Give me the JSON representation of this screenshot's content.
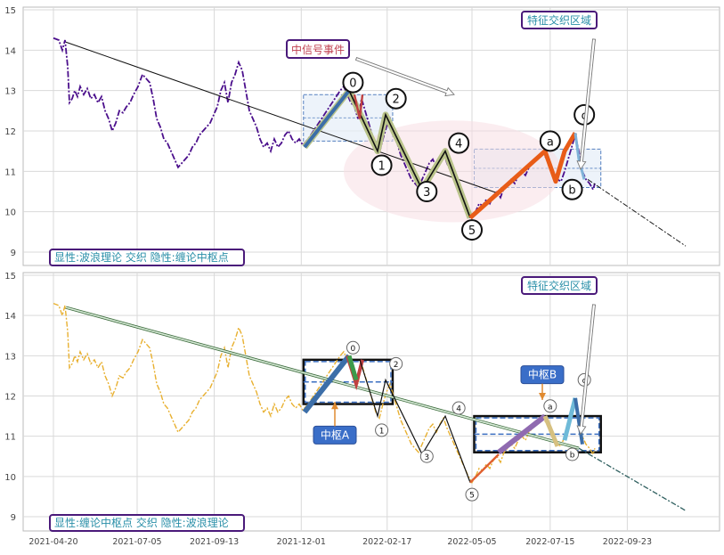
{
  "chart_data": [
    {
      "type": "line",
      "panel": "top",
      "ylim": [
        8.8,
        15.1
      ],
      "yticks": [
        9,
        10,
        11,
        12,
        13,
        14,
        15
      ],
      "grid": true,
      "legend_box": "显性:波浪理论 交织 隐性:缠论中枢点",
      "annotations": {
        "signal_event": "中信号事件",
        "feature_zone": "特征交织区域"
      },
      "wave_labels": [
        {
          "label": "0",
          "x": "2022-01-17",
          "y": 13.2
        },
        {
          "label": "2",
          "x": "2022-02-25",
          "y": 12.8
        },
        {
          "label": "1",
          "x": "2022-02-12",
          "y": 11.15
        },
        {
          "label": "3",
          "x": "2022-03-25",
          "y": 10.5
        },
        {
          "label": "4",
          "x": "2022-04-23",
          "y": 11.7
        },
        {
          "label": "5",
          "x": "2022-05-05",
          "y": 9.55
        },
        {
          "label": "a",
          "x": "2022-07-15",
          "y": 11.75
        },
        {
          "label": "b",
          "x": "2022-08-04",
          "y": 10.55
        },
        {
          "label": "c",
          "x": "2022-08-15",
          "y": 12.4
        }
      ],
      "zones": [
        {
          "x": [
            "2021-12-03",
            "2022-02-22"
          ],
          "y": [
            11.75,
            12.9
          ]
        },
        {
          "x": [
            "2022-05-07",
            "2022-08-30"
          ],
          "y": [
            10.6,
            11.55
          ]
        }
      ]
    },
    {
      "type": "line",
      "panel": "bottom",
      "ylim": [
        8.8,
        15.1
      ],
      "yticks": [
        9,
        10,
        11,
        12,
        13,
        14,
        15
      ],
      "grid": true,
      "legend_box": "显性:缠论中枢点 交织 隐性:波浪理论",
      "annotations": {
        "pivot_a": "中枢A",
        "pivot_b": "中枢B",
        "feature_zone": "特征交织区域"
      },
      "wave_labels": [
        {
          "label": "0",
          "x": "2022-01-17",
          "y": 13.2
        },
        {
          "label": "2",
          "x": "2022-02-25",
          "y": 12.8
        },
        {
          "label": "1",
          "x": "2022-02-12",
          "y": 11.15
        },
        {
          "label": "3",
          "x": "2022-03-25",
          "y": 10.5
        },
        {
          "label": "4",
          "x": "2022-04-23",
          "y": 11.7
        },
        {
          "label": "5",
          "x": "2022-05-05",
          "y": 9.55
        },
        {
          "label": "a",
          "x": "2022-07-15",
          "y": 11.75
        },
        {
          "label": "b",
          "x": "2022-08-04",
          "y": 10.55
        },
        {
          "label": "c",
          "x": "2022-08-15",
          "y": 12.4
        }
      ],
      "zones": [
        {
          "x": [
            "2021-12-03",
            "2022-02-22"
          ],
          "y": [
            11.8,
            12.9
          ]
        },
        {
          "x": [
            "2022-05-07",
            "2022-08-30"
          ],
          "y": [
            10.6,
            11.5
          ]
        }
      ]
    }
  ],
  "x_axis": {
    "tick_labels": [
      "2021-04-20",
      "2021-07-05",
      "2021-09-13",
      "2021-12-01",
      "2022-02-17",
      "2022-05-05",
      "2022-07-15",
      "2022-09-23"
    ]
  }
}
